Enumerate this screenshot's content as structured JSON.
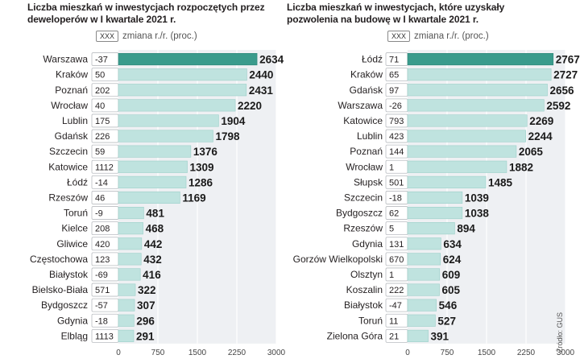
{
  "chart_data": [
    {
      "type": "bar",
      "orientation": "horizontal",
      "title": "Liczba mieszkań w inwestycjach rozpoczętych przez deweloperów w I kwartale 2021 r.",
      "title_lines": [
        "Liczba mieszkań w inwestycjach rozpoczętych przez",
        "deweloperów w I kwartale 2021 r."
      ],
      "legend_key": "XXX",
      "legend_label": "zmiana r./r. (proc.)",
      "categories": [
        "Warszawa",
        "Kraków",
        "Poznań",
        "Wrocław",
        "Lublin",
        "Gdańsk",
        "Szczecin",
        "Katowice",
        "Łódź",
        "Rzeszów",
        "Toruń",
        "Kielce",
        "Gliwice",
        "Częstochowa",
        "Białystok",
        "Bielsko-Biała",
        "Bydgoszcz",
        "Gdynia",
        "Elbląg"
      ],
      "values": [
        2634,
        2440,
        2431,
        2220,
        1904,
        1798,
        1376,
        1309,
        1286,
        1169,
        481,
        468,
        442,
        432,
        416,
        322,
        307,
        296,
        291
      ],
      "yoy_change": [
        "-37",
        "50",
        "202",
        "40",
        "175",
        "226",
        "59",
        "1112",
        "-14",
        "46",
        "-9",
        "208",
        "420",
        "123",
        "-69",
        "571",
        "-57",
        "-18",
        "1113"
      ],
      "highlight": "Warszawa",
      "xlim": [
        0,
        3000
      ],
      "xticks": [
        "0",
        "750",
        "1500",
        "2250",
        "3000"
      ]
    },
    {
      "type": "bar",
      "orientation": "horizontal",
      "title": "Liczba mieszkań w inwestycjach, które uzyskały pozwolenia na budowę w I kwartale 2021 r.",
      "title_lines": [
        "Liczba mieszkań w inwestycjach, które uzyskały",
        "pozwolenia na budowę w I kwartale 2021 r."
      ],
      "legend_key": "XXX",
      "legend_label": "zmiana r./r. (proc.)",
      "categories": [
        "Łódź",
        "Kraków",
        "Gdańsk",
        "Warszawa",
        "Katowice",
        "Lublin",
        "Poznań",
        "Wrocław",
        "Słupsk",
        "Szczecin",
        "Bydgoszcz",
        "Rzeszów",
        "Gdynia",
        "Gorzów Wielkopolski",
        "Olsztyn",
        "Koszalin",
        "Białystok",
        "Toruń",
        "Zielona Góra"
      ],
      "values": [
        2767,
        2727,
        2656,
        2592,
        2269,
        2244,
        2065,
        1882,
        1485,
        1039,
        1038,
        894,
        634,
        624,
        609,
        605,
        546,
        527,
        391
      ],
      "yoy_change": [
        "71",
        "65",
        "97",
        "-26",
        "793",
        "423",
        "144",
        "1",
        "501",
        "-18",
        "62",
        "5",
        "131",
        "670",
        "1",
        "222",
        "-47",
        "11",
        "21"
      ],
      "highlight": "Łódź",
      "xlim": [
        0,
        3000
      ],
      "xticks": [
        "0",
        "750",
        "1500",
        "2250",
        "3000"
      ]
    }
  ],
  "source": "Źródło: GUS",
  "colors": {
    "highlight": "#3a9b8c",
    "bar": "#bfe3df",
    "bar_edge": "#9ccfc9",
    "panel": "#eef0f3",
    "gridline": "#ffffff",
    "text": "#231f20"
  }
}
